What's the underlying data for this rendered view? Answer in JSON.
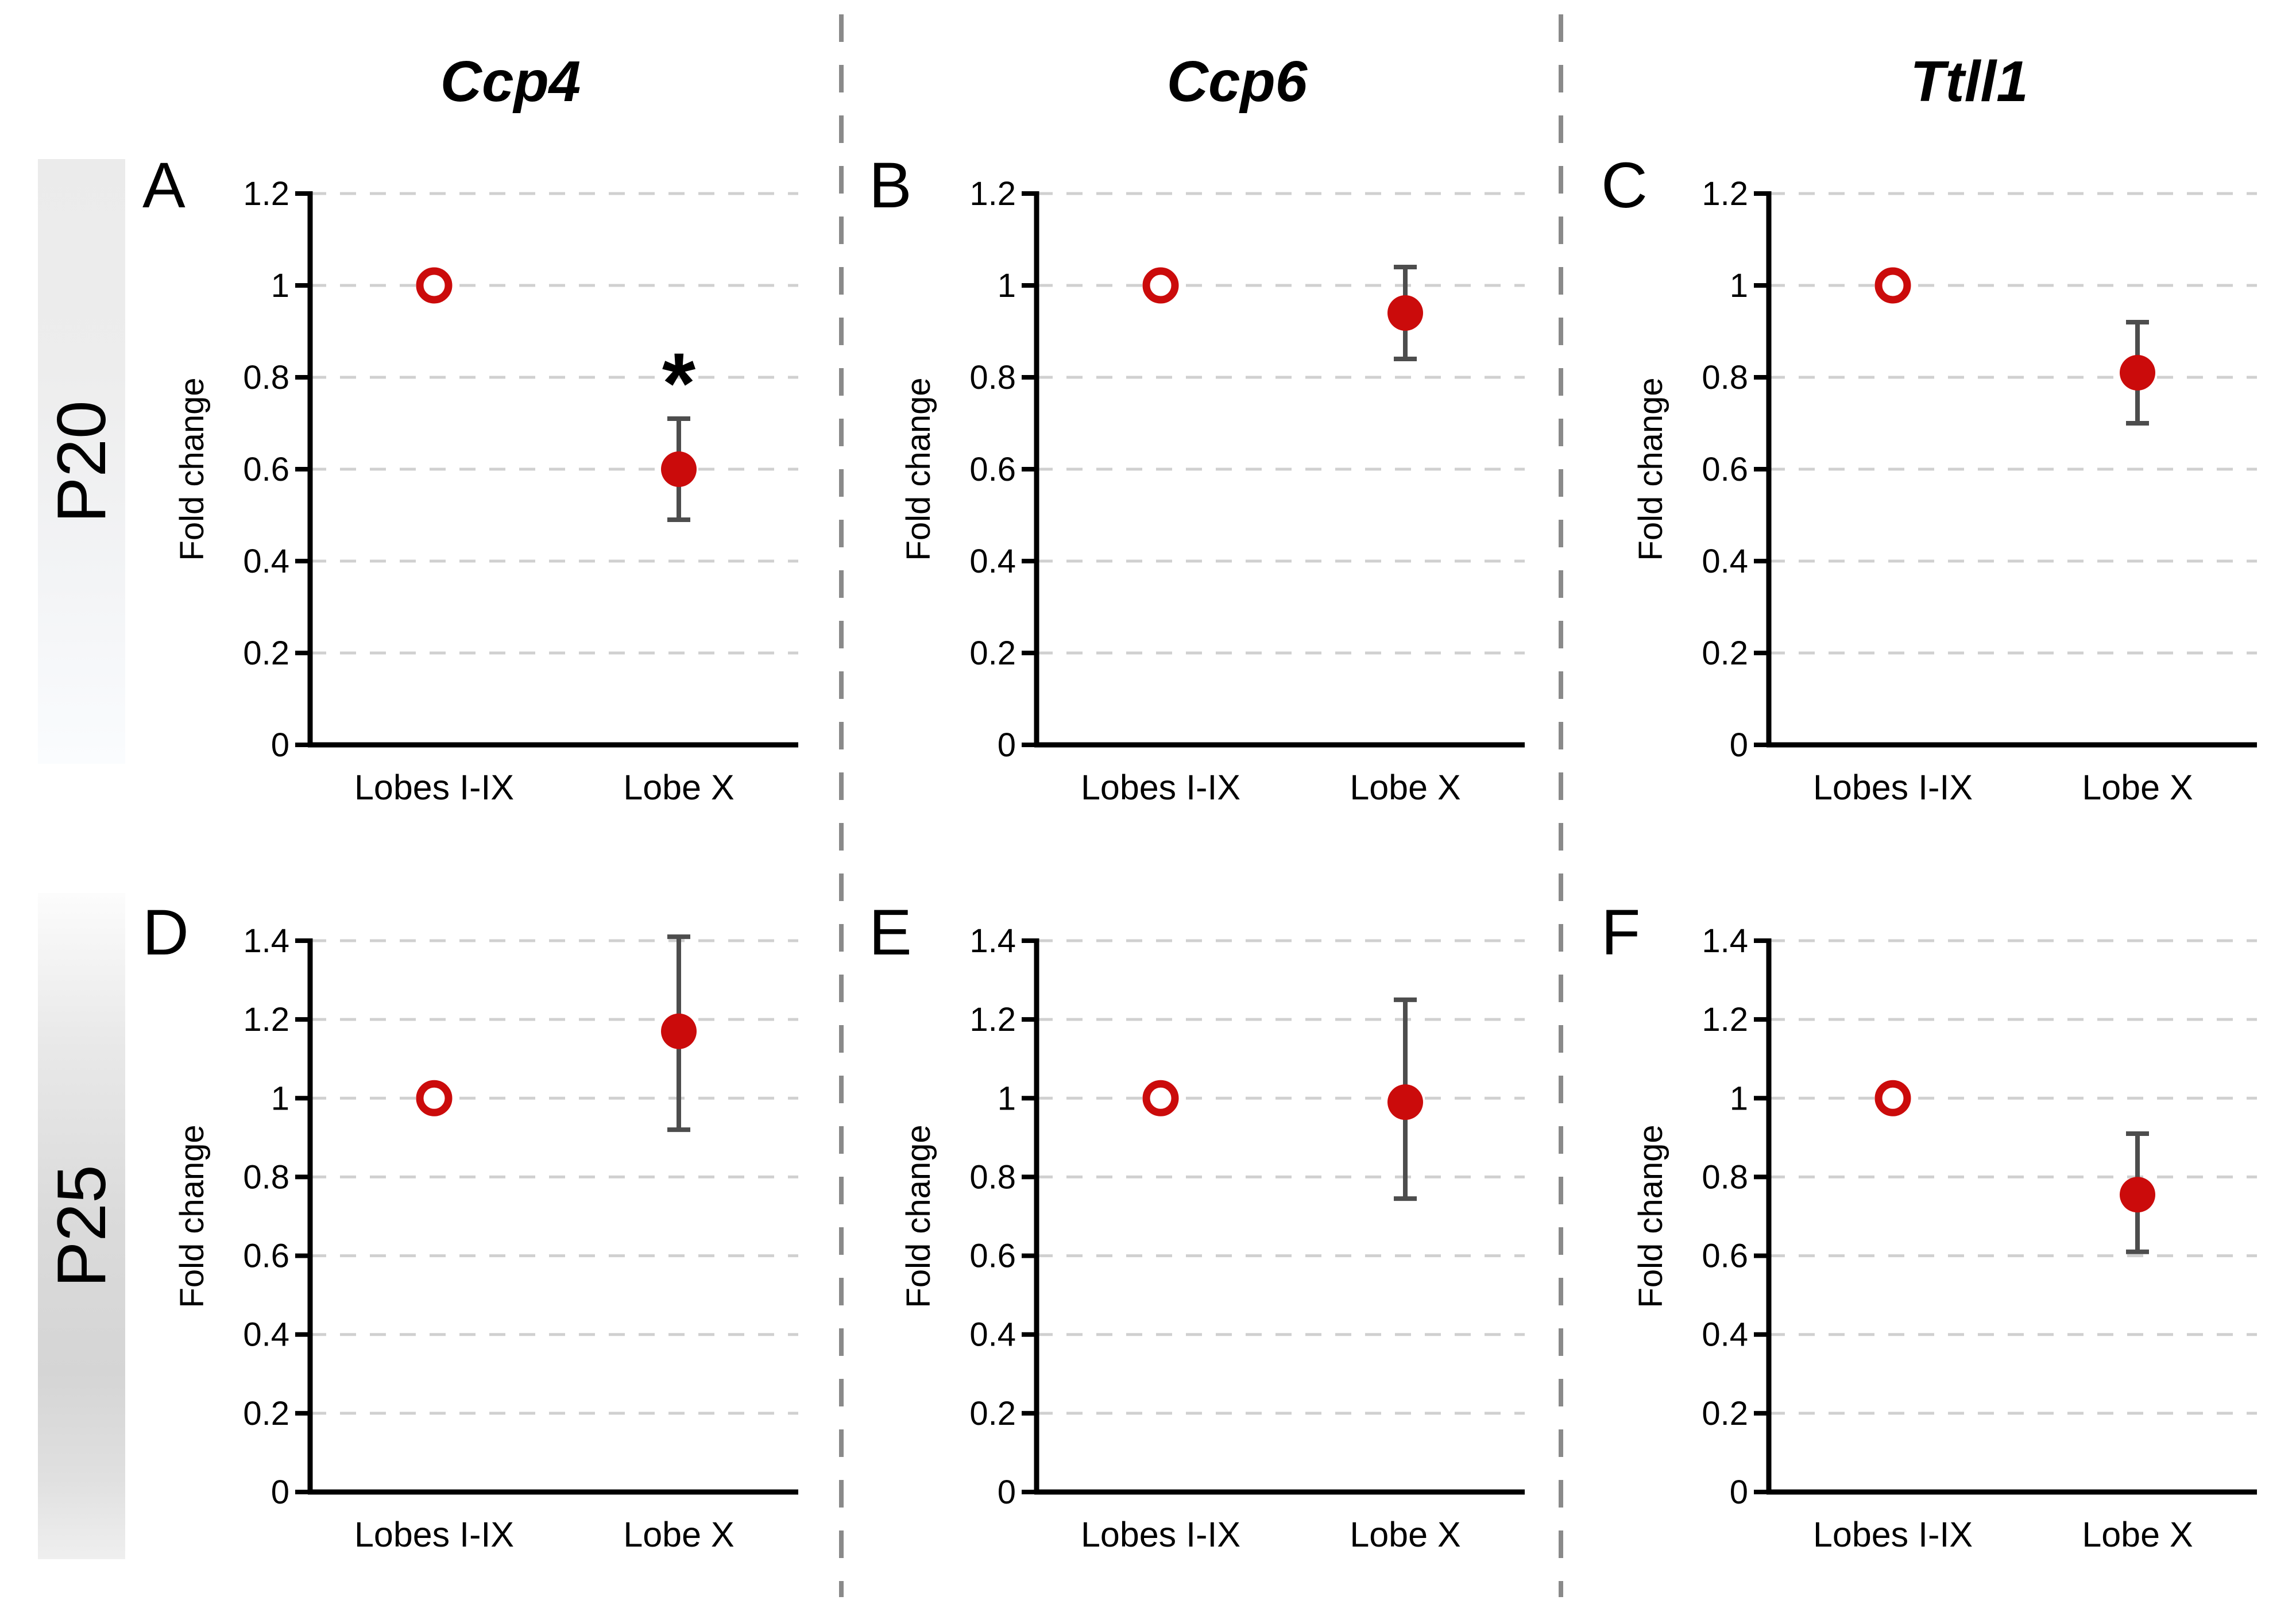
{
  "column_titles": [
    "Ccp4",
    "Ccp6",
    "Ttll1"
  ],
  "row_bands": [
    {
      "label": "P20"
    },
    {
      "label": "P25"
    }
  ],
  "colors": {
    "marker_red": "#cb0b0b",
    "error_bar": "#4d4d4d",
    "gridline": "#d0d0d0",
    "separator": "#8a8a8a",
    "axis": "#000000"
  },
  "chart_data": [
    {
      "type": "scatter",
      "panel": "A",
      "row": "P20",
      "gene": "Ccp4",
      "ylabel": "Fold change",
      "ylim": [
        0,
        1.2
      ],
      "ytick_step": 0.2,
      "grid": true,
      "categories": [
        "Lobes I-IX",
        "Lobe X"
      ],
      "points": [
        {
          "category": "Lobes I-IX",
          "value": 1.0,
          "marker": "open"
        },
        {
          "category": "Lobe X",
          "value": 0.6,
          "error_low": 0.49,
          "error_high": 0.71,
          "marker": "filled"
        }
      ],
      "significance": {
        "symbol": "*",
        "category": "Lobe X",
        "y": 0.8
      }
    },
    {
      "type": "scatter",
      "panel": "B",
      "row": "P20",
      "gene": "Ccp6",
      "ylabel": "Fold change",
      "ylim": [
        0,
        1.2
      ],
      "ytick_step": 0.2,
      "grid": true,
      "categories": [
        "Lobes I-IX",
        "Lobe X"
      ],
      "points": [
        {
          "category": "Lobes I-IX",
          "value": 1.0,
          "marker": "open"
        },
        {
          "category": "Lobe X",
          "value": 0.94,
          "error_low": 0.84,
          "error_high": 1.04,
          "marker": "filled"
        }
      ],
      "significance": null
    },
    {
      "type": "scatter",
      "panel": "C",
      "row": "P20",
      "gene": "Ttll1",
      "ylabel": "Fold change",
      "ylim": [
        0,
        1.2
      ],
      "ytick_step": 0.2,
      "grid": true,
      "categories": [
        "Lobes I-IX",
        "Lobe X"
      ],
      "points": [
        {
          "category": "Lobes I-IX",
          "value": 1.0,
          "marker": "open"
        },
        {
          "category": "Lobe X",
          "value": 0.81,
          "error_low": 0.7,
          "error_high": 0.92,
          "marker": "filled"
        }
      ],
      "significance": null
    },
    {
      "type": "scatter",
      "panel": "D",
      "row": "P25",
      "gene": "Ccp4",
      "ylabel": "Fold change",
      "ylim": [
        0,
        1.4
      ],
      "ytick_step": 0.2,
      "grid": true,
      "categories": [
        "Lobes I-IX",
        "Lobe X"
      ],
      "points": [
        {
          "category": "Lobes I-IX",
          "value": 1.0,
          "marker": "open"
        },
        {
          "category": "Lobe X",
          "value": 1.17,
          "error_low": 0.92,
          "error_high": 1.41,
          "marker": "filled"
        }
      ],
      "significance": null
    },
    {
      "type": "scatter",
      "panel": "E",
      "row": "P25",
      "gene": "Ccp6",
      "ylabel": "Fold change",
      "ylim": [
        0,
        1.4
      ],
      "ytick_step": 0.2,
      "grid": true,
      "categories": [
        "Lobes I-IX",
        "Lobe X"
      ],
      "points": [
        {
          "category": "Lobes I-IX",
          "value": 1.0,
          "marker": "open"
        },
        {
          "category": "Lobe X",
          "value": 0.99,
          "error_low": 0.745,
          "error_high": 1.25,
          "marker": "filled"
        }
      ],
      "significance": null
    },
    {
      "type": "scatter",
      "panel": "F",
      "row": "P25",
      "gene": "Ttll1",
      "ylabel": "Fold change",
      "ylim": [
        0,
        1.4
      ],
      "ytick_step": 0.2,
      "grid": true,
      "categories": [
        "Lobes I-IX",
        "Lobe X"
      ],
      "points": [
        {
          "category": "Lobes I-IX",
          "value": 1.0,
          "marker": "open"
        },
        {
          "category": "Lobe X",
          "value": 0.755,
          "error_low": 0.61,
          "error_high": 0.91,
          "marker": "filled"
        }
      ],
      "significance": null
    }
  ]
}
